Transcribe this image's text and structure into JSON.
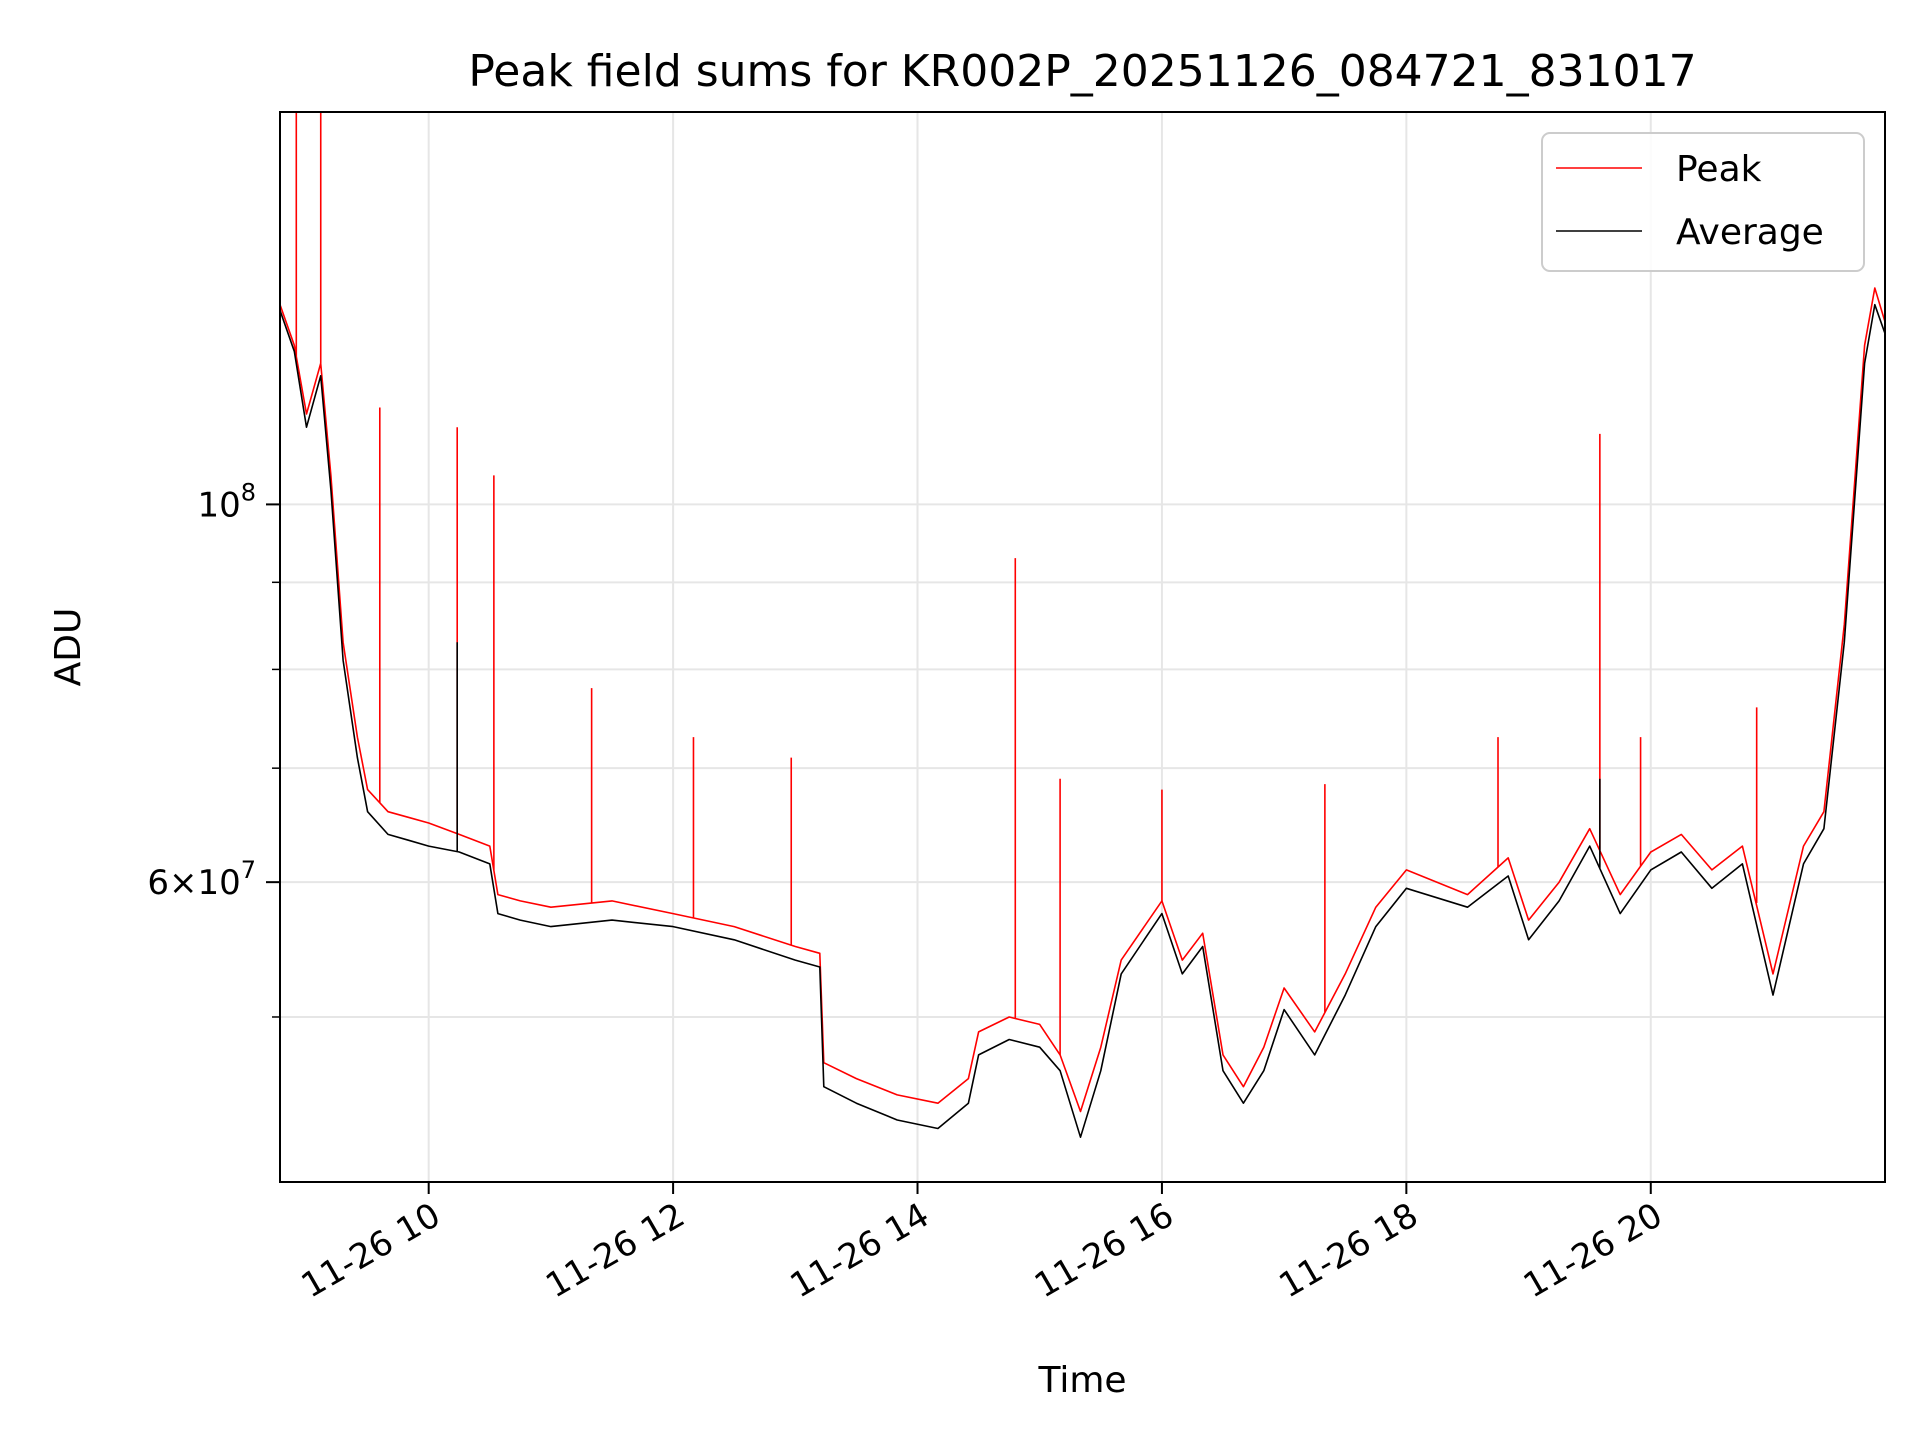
{
  "chart_data": {
    "type": "line",
    "title": "Peak field sums for KR002P_20251126_084721_831017",
    "xlabel": "Time",
    "ylabel": "ADU",
    "yscale": "log",
    "xlim": [
      "2025-11-26 08:47",
      "2025-11-26 21:55"
    ],
    "ylim": [
      40000000,
      170000000
    ],
    "grid": true,
    "legend_position": "top-right",
    "x_ticks": [
      {
        "value": "2025-11-26 10:00",
        "label": "11-26 10"
      },
      {
        "value": "2025-11-26 12:00",
        "label": "11-26 12"
      },
      {
        "value": "2025-11-26 14:00",
        "label": "11-26 14"
      },
      {
        "value": "2025-11-26 16:00",
        "label": "11-26 16"
      },
      {
        "value": "2025-11-26 18:00",
        "label": "11-26 18"
      },
      {
        "value": "2025-11-26 20:00",
        "label": "11-26 20"
      }
    ],
    "y_major_ticks": [
      {
        "value": 100000000,
        "base": "10",
        "exp": "8"
      },
      {
        "value": 60000000,
        "mant": "6",
        "base": "10",
        "exp": "7"
      }
    ],
    "y_minor_ticks": [
      50000000,
      70000000,
      80000000,
      90000000
    ],
    "series": [
      {
        "name": "Peak",
        "color": "#ff0000",
        "x": [
          "2025-11-26 08:47",
          "2025-11-26 08:54",
          "2025-11-26 09:00",
          "2025-11-26 09:07",
          "2025-11-26 09:12",
          "2025-11-26 09:18",
          "2025-11-26 09:25",
          "2025-11-26 09:30",
          "2025-11-26 09:40",
          "2025-11-26 09:50",
          "2025-11-26 10:00",
          "2025-11-26 10:15",
          "2025-11-26 10:30",
          "2025-11-26 10:34",
          "2025-11-26 10:45",
          "2025-11-26 11:00",
          "2025-11-26 11:30",
          "2025-11-26 12:00",
          "2025-11-26 12:30",
          "2025-11-26 13:00",
          "2025-11-26 13:12",
          "2025-11-26 13:14",
          "2025-11-26 13:30",
          "2025-11-26 13:50",
          "2025-11-26 14:10",
          "2025-11-26 14:25",
          "2025-11-26 14:30",
          "2025-11-26 14:45",
          "2025-11-26 15:00",
          "2025-11-26 15:10",
          "2025-11-26 15:20",
          "2025-11-26 15:30",
          "2025-11-26 15:40",
          "2025-11-26 16:00",
          "2025-11-26 16:10",
          "2025-11-26 16:20",
          "2025-11-26 16:30",
          "2025-11-26 16:40",
          "2025-11-26 16:50",
          "2025-11-26 17:00",
          "2025-11-26 17:15",
          "2025-11-26 17:30",
          "2025-11-26 17:45",
          "2025-11-26 18:00",
          "2025-11-26 18:30",
          "2025-11-26 18:50",
          "2025-11-26 19:00",
          "2025-11-26 19:15",
          "2025-11-26 19:30",
          "2025-11-26 19:45",
          "2025-11-26 20:00",
          "2025-11-26 20:15",
          "2025-11-26 20:30",
          "2025-11-26 20:45",
          "2025-11-26 21:00",
          "2025-11-26 21:15",
          "2025-11-26 21:25",
          "2025-11-26 21:35",
          "2025-11-26 21:45",
          "2025-11-26 21:50",
          "2025-11-26 21:55"
        ],
        "y": [
          131000000,
          124000000,
          113000000,
          121000000,
          104000000,
          83000000,
          73000000,
          68000000,
          66000000,
          65500000,
          65000000,
          64000000,
          63000000,
          59000000,
          58500000,
          58000000,
          58500000,
          57500000,
          56500000,
          55000000,
          54500000,
          47000000,
          46000000,
          45000000,
          44500000,
          46000000,
          49000000,
          50000000,
          49500000,
          47500000,
          44000000,
          48000000,
          54000000,
          58500000,
          54000000,
          56000000,
          47500000,
          45500000,
          48000000,
          52000000,
          49000000,
          53000000,
          58000000,
          61000000,
          59000000,
          62000000,
          57000000,
          60000000,
          64500000,
          59000000,
          62500000,
          64000000,
          61000000,
          63000000,
          53000000,
          63000000,
          66000000,
          85000000,
          124000000,
          134000000,
          128000000
        ],
        "spikes": [
          {
            "x": "2025-11-26 08:55",
            "y": 170000000
          },
          {
            "x": "2025-11-26 09:07",
            "y": 170000000
          },
          {
            "x": "2025-11-26 09:36",
            "y": 114000000
          },
          {
            "x": "2025-11-26 10:14",
            "y": 111000000
          },
          {
            "x": "2025-11-26 10:32",
            "y": 104000000
          },
          {
            "x": "2025-11-26 11:20",
            "y": 78000000
          },
          {
            "x": "2025-11-26 12:10",
            "y": 73000000
          },
          {
            "x": "2025-11-26 12:58",
            "y": 71000000
          },
          {
            "x": "2025-11-26 14:48",
            "y": 93000000
          },
          {
            "x": "2025-11-26 15:10",
            "y": 69000000
          },
          {
            "x": "2025-11-26 16:00",
            "y": 68000000
          },
          {
            "x": "2025-11-26 17:20",
            "y": 68500000
          },
          {
            "x": "2025-11-26 18:45",
            "y": 73000000
          },
          {
            "x": "2025-11-26 19:35",
            "y": 110000000
          },
          {
            "x": "2025-11-26 19:55",
            "y": 73000000
          },
          {
            "x": "2025-11-26 20:52",
            "y": 76000000
          }
        ]
      },
      {
        "name": "Average",
        "color": "#000000",
        "x": [
          "2025-11-26 08:47",
          "2025-11-26 08:54",
          "2025-11-26 09:00",
          "2025-11-26 09:07",
          "2025-11-26 09:12",
          "2025-11-26 09:18",
          "2025-11-26 09:25",
          "2025-11-26 09:30",
          "2025-11-26 09:40",
          "2025-11-26 09:50",
          "2025-11-26 10:00",
          "2025-11-26 10:15",
          "2025-11-26 10:30",
          "2025-11-26 10:34",
          "2025-11-26 10:45",
          "2025-11-26 11:00",
          "2025-11-26 11:30",
          "2025-11-26 12:00",
          "2025-11-26 12:30",
          "2025-11-26 13:00",
          "2025-11-26 13:12",
          "2025-11-26 13:14",
          "2025-11-26 13:30",
          "2025-11-26 13:50",
          "2025-11-26 14:10",
          "2025-11-26 14:25",
          "2025-11-26 14:30",
          "2025-11-26 14:45",
          "2025-11-26 15:00",
          "2025-11-26 15:10",
          "2025-11-26 15:20",
          "2025-11-26 15:30",
          "2025-11-26 15:40",
          "2025-11-26 16:00",
          "2025-11-26 16:10",
          "2025-11-26 16:20",
          "2025-11-26 16:30",
          "2025-11-26 16:40",
          "2025-11-26 16:50",
          "2025-11-26 17:00",
          "2025-11-26 17:15",
          "2025-11-26 17:30",
          "2025-11-26 17:45",
          "2025-11-26 18:00",
          "2025-11-26 18:30",
          "2025-11-26 18:50",
          "2025-11-26 19:00",
          "2025-11-26 19:15",
          "2025-11-26 19:30",
          "2025-11-26 19:45",
          "2025-11-26 20:00",
          "2025-11-26 20:15",
          "2025-11-26 20:30",
          "2025-11-26 20:45",
          "2025-11-26 21:00",
          "2025-11-26 21:15",
          "2025-11-26 21:25",
          "2025-11-26 21:35",
          "2025-11-26 21:45",
          "2025-11-26 21:50",
          "2025-11-26 21:55"
        ],
        "y": [
          130000000,
          123000000,
          111000000,
          119000000,
          102000000,
          81000000,
          71000000,
          66000000,
          64000000,
          63500000,
          63000000,
          62500000,
          61500000,
          57500000,
          57000000,
          56500000,
          57000000,
          56500000,
          55500000,
          54000000,
          53500000,
          45500000,
          44500000,
          43500000,
          43000000,
          44500000,
          47500000,
          48500000,
          48000000,
          46500000,
          42500000,
          46500000,
          53000000,
          57500000,
          53000000,
          55000000,
          46500000,
          44500000,
          46500000,
          50500000,
          47500000,
          51500000,
          56500000,
          59500000,
          58000000,
          60500000,
          55500000,
          58500000,
          63000000,
          57500000,
          61000000,
          62500000,
          59500000,
          61500000,
          51500000,
          61500000,
          64500000,
          83000000,
          121000000,
          131000000,
          126000000
        ],
        "spikes": [
          {
            "x": "2025-11-26 10:14",
            "y": 83000000
          },
          {
            "x": "2025-11-26 19:35",
            "y": 69000000
          }
        ]
      }
    ]
  }
}
